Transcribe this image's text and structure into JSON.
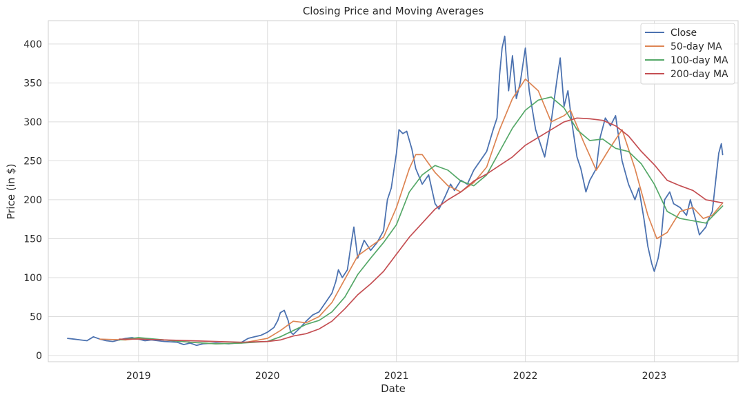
{
  "chart_data": {
    "type": "line",
    "title": "Closing Price and Moving Averages",
    "xlabel": "Date",
    "ylabel": "Price (in $)",
    "xlim": [
      2018.3,
      2023.65
    ],
    "ylim": [
      -8,
      430
    ],
    "x_ticks": [
      2019,
      2020,
      2021,
      2022,
      2023
    ],
    "x_tick_labels": [
      "2019",
      "2020",
      "2021",
      "2022",
      "2023"
    ],
    "y_ticks": [
      0,
      50,
      100,
      150,
      200,
      250,
      300,
      350,
      400
    ],
    "y_tick_labels": [
      "0",
      "50",
      "100",
      "150",
      "200",
      "250",
      "300",
      "350",
      "400"
    ],
    "grid": true,
    "legend_position": "top-right",
    "series": [
      {
        "name": "Close",
        "color": "#4c72b0",
        "points": [
          [
            2018.45,
            22
          ],
          [
            2018.5,
            21
          ],
          [
            2018.55,
            20
          ],
          [
            2018.6,
            19
          ],
          [
            2018.65,
            24
          ],
          [
            2018.7,
            21
          ],
          [
            2018.75,
            19
          ],
          [
            2018.8,
            18
          ],
          [
            2018.85,
            20
          ],
          [
            2018.9,
            22
          ],
          [
            2018.95,
            23
          ],
          [
            2019.0,
            21
          ],
          [
            2019.05,
            19
          ],
          [
            2019.1,
            20
          ],
          [
            2019.2,
            18
          ],
          [
            2019.3,
            17
          ],
          [
            2019.35,
            14
          ],
          [
            2019.4,
            16
          ],
          [
            2019.45,
            13
          ],
          [
            2019.5,
            15
          ],
          [
            2019.6,
            16
          ],
          [
            2019.7,
            15
          ],
          [
            2019.8,
            17
          ],
          [
            2019.85,
            22
          ],
          [
            2019.9,
            24
          ],
          [
            2019.95,
            26
          ],
          [
            2020.0,
            30
          ],
          [
            2020.05,
            36
          ],
          [
            2020.08,
            45
          ],
          [
            2020.1,
            55
          ],
          [
            2020.13,
            58
          ],
          [
            2020.16,
            45
          ],
          [
            2020.18,
            30
          ],
          [
            2020.2,
            27
          ],
          [
            2020.25,
            35
          ],
          [
            2020.3,
            44
          ],
          [
            2020.35,
            52
          ],
          [
            2020.4,
            56
          ],
          [
            2020.45,
            68
          ],
          [
            2020.5,
            80
          ],
          [
            2020.53,
            95
          ],
          [
            2020.55,
            110
          ],
          [
            2020.58,
            100
          ],
          [
            2020.62,
            110
          ],
          [
            2020.65,
            145
          ],
          [
            2020.67,
            165
          ],
          [
            2020.7,
            125
          ],
          [
            2020.75,
            148
          ],
          [
            2020.8,
            135
          ],
          [
            2020.85,
            145
          ],
          [
            2020.9,
            160
          ],
          [
            2020.93,
            200
          ],
          [
            2020.96,
            215
          ],
          [
            2021.0,
            260
          ],
          [
            2021.02,
            290
          ],
          [
            2021.05,
            285
          ],
          [
            2021.08,
            288
          ],
          [
            2021.12,
            265
          ],
          [
            2021.15,
            240
          ],
          [
            2021.2,
            220
          ],
          [
            2021.25,
            232
          ],
          [
            2021.3,
            195
          ],
          [
            2021.33,
            188
          ],
          [
            2021.38,
            205
          ],
          [
            2021.42,
            220
          ],
          [
            2021.45,
            212
          ],
          [
            2021.5,
            225
          ],
          [
            2021.55,
            220
          ],
          [
            2021.6,
            238
          ],
          [
            2021.65,
            250
          ],
          [
            2021.7,
            262
          ],
          [
            2021.75,
            290
          ],
          [
            2021.78,
            305
          ],
          [
            2021.8,
            360
          ],
          [
            2021.82,
            395
          ],
          [
            2021.84,
            410
          ],
          [
            2021.87,
            340
          ],
          [
            2021.9,
            385
          ],
          [
            2021.93,
            330
          ],
          [
            2021.96,
            350
          ],
          [
            2022.0,
            395
          ],
          [
            2022.03,
            340
          ],
          [
            2022.06,
            310
          ],
          [
            2022.08,
            290
          ],
          [
            2022.12,
            270
          ],
          [
            2022.15,
            255
          ],
          [
            2022.2,
            300
          ],
          [
            2022.25,
            360
          ],
          [
            2022.27,
            382
          ],
          [
            2022.3,
            320
          ],
          [
            2022.33,
            340
          ],
          [
            2022.36,
            300
          ],
          [
            2022.4,
            255
          ],
          [
            2022.43,
            240
          ],
          [
            2022.47,
            210
          ],
          [
            2022.5,
            225
          ],
          [
            2022.55,
            240
          ],
          [
            2022.58,
            280
          ],
          [
            2022.62,
            305
          ],
          [
            2022.66,
            295
          ],
          [
            2022.7,
            308
          ],
          [
            2022.75,
            250
          ],
          [
            2022.8,
            220
          ],
          [
            2022.85,
            200
          ],
          [
            2022.88,
            215
          ],
          [
            2022.92,
            175
          ],
          [
            2022.95,
            140
          ],
          [
            2022.98,
            118
          ],
          [
            2023.0,
            108
          ],
          [
            2023.03,
            125
          ],
          [
            2023.05,
            145
          ],
          [
            2023.08,
            200
          ],
          [
            2023.12,
            210
          ],
          [
            2023.15,
            195
          ],
          [
            2023.2,
            190
          ],
          [
            2023.25,
            180
          ],
          [
            2023.28,
            200
          ],
          [
            2023.32,
            175
          ],
          [
            2023.35,
            155
          ],
          [
            2023.4,
            165
          ],
          [
            2023.42,
            175
          ],
          [
            2023.45,
            185
          ],
          [
            2023.48,
            230
          ],
          [
            2023.5,
            260
          ],
          [
            2023.52,
            272
          ],
          [
            2023.53,
            258
          ]
        ]
      },
      {
        "name": "50-day MA",
        "color": "#dd8452",
        "points": [
          [
            2018.7,
            21
          ],
          [
            2018.9,
            20
          ],
          [
            2019.0,
            22
          ],
          [
            2019.2,
            20
          ],
          [
            2019.4,
            17
          ],
          [
            2019.6,
            15
          ],
          [
            2019.8,
            16
          ],
          [
            2020.0,
            22
          ],
          [
            2020.1,
            32
          ],
          [
            2020.2,
            44
          ],
          [
            2020.3,
            42
          ],
          [
            2020.4,
            50
          ],
          [
            2020.5,
            68
          ],
          [
            2020.6,
            98
          ],
          [
            2020.7,
            128
          ],
          [
            2020.8,
            140
          ],
          [
            2020.9,
            152
          ],
          [
            2021.0,
            190
          ],
          [
            2021.1,
            240
          ],
          [
            2021.15,
            258
          ],
          [
            2021.2,
            258
          ],
          [
            2021.3,
            235
          ],
          [
            2021.4,
            218
          ],
          [
            2021.5,
            210
          ],
          [
            2021.6,
            222
          ],
          [
            2021.7,
            242
          ],
          [
            2021.8,
            290
          ],
          [
            2021.9,
            330
          ],
          [
            2022.0,
            355
          ],
          [
            2022.1,
            340
          ],
          [
            2022.2,
            300
          ],
          [
            2022.3,
            308
          ],
          [
            2022.35,
            315
          ],
          [
            2022.45,
            275
          ],
          [
            2022.55,
            238
          ],
          [
            2022.65,
            265
          ],
          [
            2022.75,
            290
          ],
          [
            2022.85,
            240
          ],
          [
            2022.95,
            180
          ],
          [
            2023.02,
            150
          ],
          [
            2023.1,
            158
          ],
          [
            2023.2,
            185
          ],
          [
            2023.3,
            190
          ],
          [
            2023.38,
            176
          ],
          [
            2023.45,
            180
          ],
          [
            2023.53,
            196
          ]
        ]
      },
      {
        "name": "100-day MA",
        "color": "#55a868",
        "points": [
          [
            2018.85,
            20
          ],
          [
            2019.0,
            23
          ],
          [
            2019.2,
            20
          ],
          [
            2019.4,
            17
          ],
          [
            2019.6,
            15
          ],
          [
            2019.8,
            16
          ],
          [
            2020.0,
            18
          ],
          [
            2020.1,
            24
          ],
          [
            2020.2,
            32
          ],
          [
            2020.3,
            40
          ],
          [
            2020.4,
            45
          ],
          [
            2020.5,
            56
          ],
          [
            2020.6,
            75
          ],
          [
            2020.7,
            104
          ],
          [
            2020.8,
            125
          ],
          [
            2020.9,
            145
          ],
          [
            2021.0,
            168
          ],
          [
            2021.1,
            210
          ],
          [
            2021.2,
            232
          ],
          [
            2021.3,
            244
          ],
          [
            2021.4,
            238
          ],
          [
            2021.5,
            224
          ],
          [
            2021.6,
            218
          ],
          [
            2021.7,
            232
          ],
          [
            2021.8,
            262
          ],
          [
            2021.9,
            292
          ],
          [
            2022.0,
            315
          ],
          [
            2022.1,
            328
          ],
          [
            2022.2,
            332
          ],
          [
            2022.3,
            318
          ],
          [
            2022.4,
            290
          ],
          [
            2022.5,
            276
          ],
          [
            2022.6,
            278
          ],
          [
            2022.7,
            266
          ],
          [
            2022.8,
            262
          ],
          [
            2022.9,
            246
          ],
          [
            2023.0,
            220
          ],
          [
            2023.1,
            185
          ],
          [
            2023.2,
            176
          ],
          [
            2023.3,
            173
          ],
          [
            2023.4,
            170
          ],
          [
            2023.53,
            192
          ]
        ]
      },
      {
        "name": "200-day MA",
        "color": "#c44e52",
        "points": [
          [
            2018.85,
            21
          ],
          [
            2019.0,
            21
          ],
          [
            2019.2,
            20
          ],
          [
            2019.4,
            19
          ],
          [
            2019.6,
            18
          ],
          [
            2019.8,
            17
          ],
          [
            2020.0,
            18
          ],
          [
            2020.1,
            20
          ],
          [
            2020.2,
            25
          ],
          [
            2020.3,
            28
          ],
          [
            2020.4,
            34
          ],
          [
            2020.5,
            44
          ],
          [
            2020.6,
            60
          ],
          [
            2020.7,
            78
          ],
          [
            2020.8,
            92
          ],
          [
            2020.9,
            108
          ],
          [
            2021.0,
            130
          ],
          [
            2021.1,
            152
          ],
          [
            2021.2,
            170
          ],
          [
            2021.3,
            188
          ],
          [
            2021.4,
            200
          ],
          [
            2021.5,
            210
          ],
          [
            2021.6,
            224
          ],
          [
            2021.7,
            233
          ],
          [
            2021.8,
            244
          ],
          [
            2021.9,
            255
          ],
          [
            2022.0,
            270
          ],
          [
            2022.1,
            280
          ],
          [
            2022.2,
            290
          ],
          [
            2022.3,
            300
          ],
          [
            2022.4,
            305
          ],
          [
            2022.5,
            304
          ],
          [
            2022.6,
            302
          ],
          [
            2022.7,
            295
          ],
          [
            2022.8,
            282
          ],
          [
            2022.9,
            262
          ],
          [
            2023.0,
            245
          ],
          [
            2023.1,
            225
          ],
          [
            2023.2,
            218
          ],
          [
            2023.3,
            212
          ],
          [
            2023.4,
            200
          ],
          [
            2023.53,
            196
          ]
        ]
      }
    ]
  }
}
